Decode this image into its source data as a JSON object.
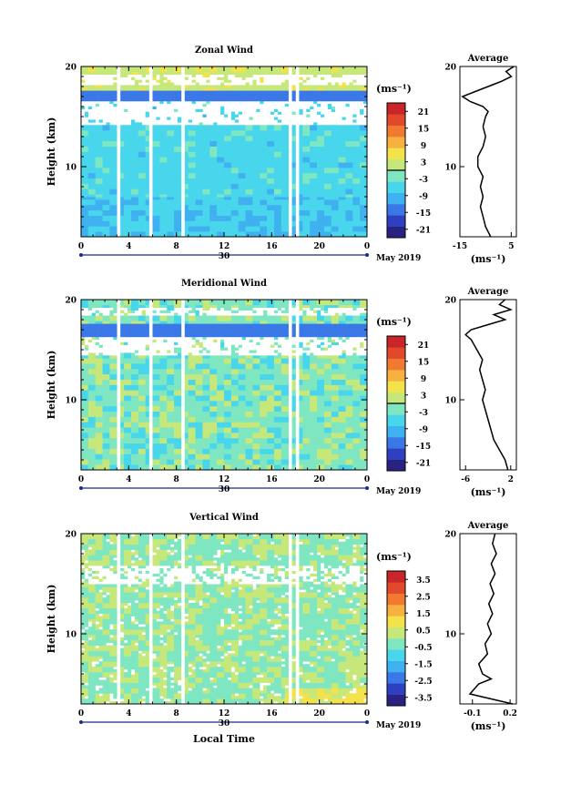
{
  "chart_data": [
    {
      "type": "heatmap",
      "title": "Zonal Wind",
      "ylabel": "Height (km)",
      "x_range": [
        0,
        24
      ],
      "x_ticks": [
        "0",
        "4",
        "8",
        "12",
        "16",
        "20",
        "0"
      ],
      "y_range": [
        3,
        20
      ],
      "y_ticks": [
        "20",
        "10"
      ],
      "date_label": "May 2019",
      "day_label": "30",
      "colorbar": {
        "unit": "(ms⁻¹)",
        "range": [
          -24,
          24
        ],
        "ticks": [
          "21",
          "15",
          "9",
          "3",
          "-3",
          "-9",
          "-15",
          "-21"
        ],
        "colors": [
          "#2a2280",
          "#2e3fc0",
          "#3a78e8",
          "#3fb0f0",
          "#48d6ec",
          "#7ee6c0",
          "#c6e87a",
          "#f4e24a",
          "#f8b040",
          "#f07a30",
          "#e04a2a",
          "#c8262a"
        ]
      },
      "profile": {
        "title": "Average",
        "xlabel": "(ms⁻¹)",
        "xlim": [
          -15,
          7
        ],
        "x_ticks": [
          "-15",
          "5"
        ],
        "y_ticks": [
          "20",
          "10"
        ],
        "heights": [
          3,
          4,
          5,
          6,
          7,
          8,
          9,
          10,
          11,
          12,
          13,
          14,
          15,
          15.5,
          16,
          16.5,
          17,
          17.5,
          18,
          18.5,
          19,
          19.5,
          20
        ],
        "values": [
          -3,
          -5,
          -6,
          -7,
          -6,
          -7,
          -6,
          -8,
          -8,
          -6,
          -5,
          -6,
          -5,
          -4,
          -6,
          -11,
          -14,
          -9,
          -4,
          1,
          5,
          3,
          6
        ]
      }
    },
    {
      "type": "heatmap",
      "title": "Meridional Wind",
      "ylabel": "Height (km)",
      "x_range": [
        0,
        24
      ],
      "x_ticks": [
        "0",
        "4",
        "8",
        "12",
        "16",
        "20",
        "0"
      ],
      "y_range": [
        3,
        20
      ],
      "y_ticks": [
        "20",
        "10"
      ],
      "date_label": "May 2019",
      "day_label": "30",
      "colorbar": {
        "unit": "(ms⁻¹)",
        "range": [
          -24,
          24
        ],
        "ticks": [
          "21",
          "15",
          "9",
          "3",
          "-3",
          "-9",
          "-15",
          "-21"
        ],
        "colors": [
          "#2a2280",
          "#2e3fc0",
          "#3a78e8",
          "#3fb0f0",
          "#48d6ec",
          "#7ee6c0",
          "#c6e87a",
          "#f4e24a",
          "#f8b040",
          "#f07a30",
          "#e04a2a",
          "#c8262a"
        ]
      },
      "profile": {
        "title": "Average",
        "xlabel": "(ms⁻¹)",
        "xlim": [
          -7,
          3
        ],
        "x_ticks": [
          "-6",
          "2"
        ],
        "y_ticks": [
          "20",
          "10"
        ],
        "heights": [
          3,
          4,
          5,
          6,
          7,
          8,
          9,
          10,
          11,
          12,
          13,
          14,
          15,
          15.5,
          16,
          16.5,
          17,
          17.5,
          18,
          18.5,
          19,
          19.5,
          20
        ],
        "values": [
          1.5,
          1,
          0,
          -1,
          -1.5,
          -2,
          -2.5,
          -3,
          -2.5,
          -3,
          -3.5,
          -3,
          -4,
          -4.5,
          -5,
          -6,
          -5,
          -2,
          1,
          -1,
          2,
          0,
          1
        ]
      }
    },
    {
      "type": "heatmap",
      "title": "Vertical Wind",
      "xlabel": "Local Time",
      "ylabel": "Height (km)",
      "x_range": [
        0,
        24
      ],
      "x_ticks": [
        "0",
        "4",
        "8",
        "12",
        "16",
        "20",
        "0"
      ],
      "y_range": [
        3,
        20
      ],
      "y_ticks": [
        "20",
        "10"
      ],
      "date_label": "May 2019",
      "day_label": "30",
      "colorbar": {
        "unit": "(ms⁻¹)",
        "range": [
          -4,
          4
        ],
        "ticks": [
          "3.5",
          "2.5",
          "1.5",
          "0.5",
          "-0.5",
          "-1.5",
          "-2.5",
          "-3.5"
        ],
        "colors": [
          "#2a2280",
          "#2e3fc0",
          "#3a78e8",
          "#3fb0f0",
          "#48d6ec",
          "#7ee6c0",
          "#c6e87a",
          "#f4e24a",
          "#f8b040",
          "#f07a30",
          "#e04a2a",
          "#c8262a"
        ]
      },
      "profile": {
        "title": "Average",
        "xlabel": "(ms⁻¹)",
        "xlim": [
          -0.2,
          0.25
        ],
        "x_ticks": [
          "-0.1",
          "0.2"
        ],
        "y_ticks": [
          "20",
          "10"
        ],
        "heights": [
          3,
          3.5,
          4,
          5,
          5.5,
          6,
          7,
          8,
          9,
          10,
          11,
          12,
          13,
          14,
          15,
          16,
          17,
          18,
          19,
          20
        ],
        "values": [
          0.22,
          0.05,
          -0.12,
          -0.05,
          0.05,
          -0.02,
          -0.05,
          0.02,
          0.0,
          0.05,
          0.02,
          0.06,
          0.03,
          0.07,
          0.04,
          0.08,
          0.05,
          0.09,
          0.06,
          0.08
        ]
      }
    }
  ]
}
